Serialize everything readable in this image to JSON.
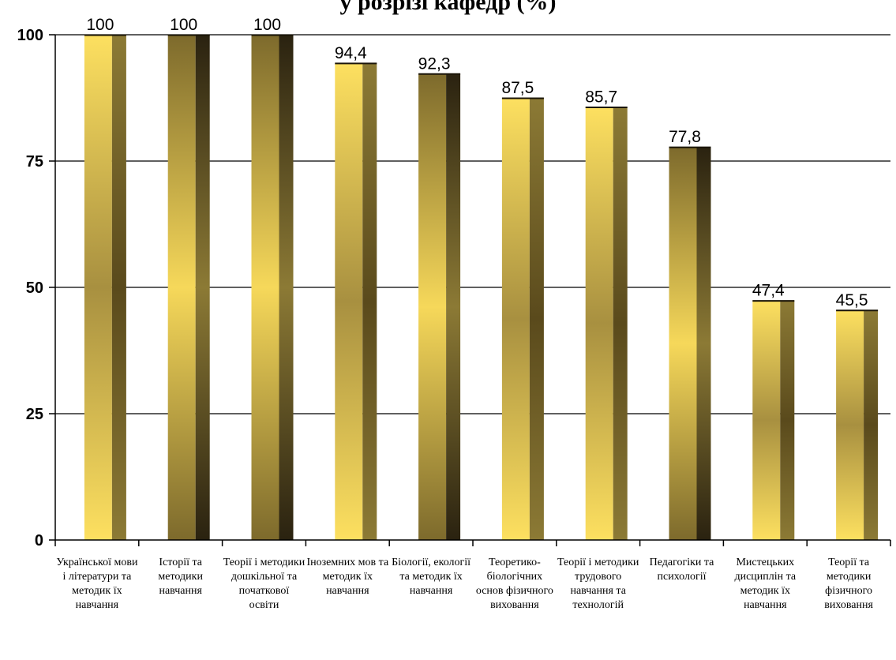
{
  "chart_data": {
    "type": "bar",
    "title": "у розрізі кафедр (%)",
    "categories": [
      "Української мови і літератури та методик їх навчання",
      "Історії та методики навчання",
      "Теорії і методики дошкільної та початкової освіти",
      "Іноземних мов та методик їх навчання",
      "Біології, екології та методик їх навчання",
      "Теоретико-біологічних основ фізичного виховання",
      "Теорії і методики трудового навчання та технологій",
      "Педагогіки та психології",
      "Мистецьких дисциплін та методик їх навчання",
      "Теорії та методики фізичного виховання"
    ],
    "values": [
      100,
      100,
      100,
      94.4,
      92.3,
      87.5,
      85.7,
      77.8,
      47.4,
      45.5
    ],
    "value_labels": [
      "100",
      "100",
      "100",
      "94,4",
      "92,3",
      "87,5",
      "85,7",
      "77,8",
      "47,4",
      "45,5"
    ],
    "y_ticks": [
      "0",
      "25",
      "50",
      "75",
      "100"
    ],
    "ylim": [
      0,
      100
    ],
    "grid": true,
    "legend": "none",
    "colors": {
      "light_bar": "#fde060",
      "dark_bar": "#7d6a2c",
      "side_dark": "#2a2210",
      "side_light": "#8c7a35"
    }
  }
}
